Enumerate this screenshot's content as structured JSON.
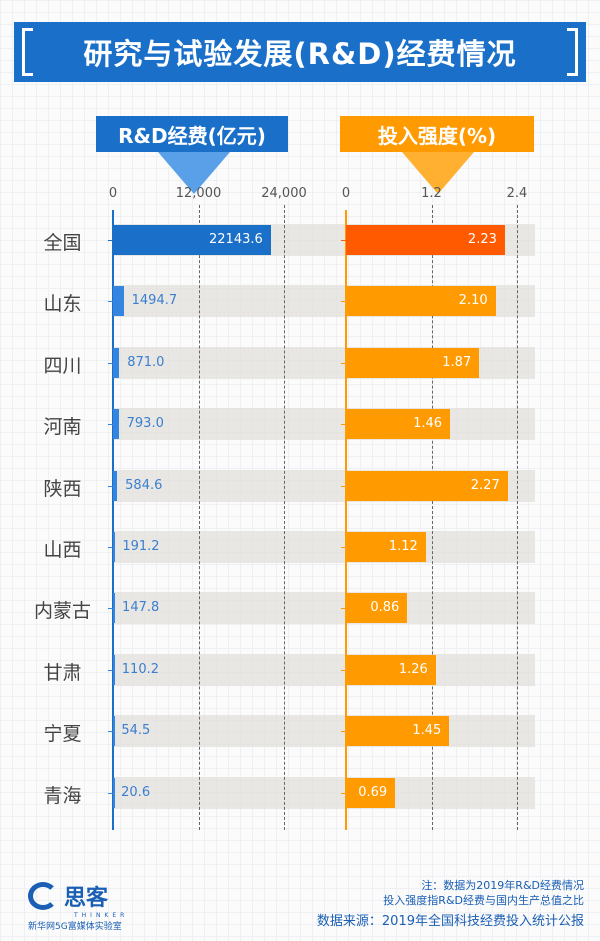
{
  "title": "研究与试验发展(R&D)经费情况",
  "colors": {
    "blue": "#1a6fc9",
    "blue_bar": "#3385e0",
    "orange": "#ff9a00",
    "orange_highlight": "#ff5a00"
  },
  "chart_data": [
    {
      "type": "bar",
      "orientation": "horizontal",
      "title": "R&D经费(亿元)",
      "ticks": [
        "0",
        "12,000",
        "24,000"
      ],
      "xlim": [
        0,
        24000
      ],
      "categories": [
        "全国",
        "山东",
        "四川",
        "河南",
        "陕西",
        "山西",
        "内蒙古",
        "甘肃",
        "宁夏",
        "青海"
      ],
      "values": [
        22143.6,
        1494.7,
        871.0,
        793.0,
        584.6,
        191.2,
        147.8,
        110.2,
        54.5,
        20.6
      ],
      "labels": [
        "22143.6",
        "1494.7",
        "871.0",
        "793.0",
        "584.6",
        "191.2",
        "147.8",
        "110.2",
        "54.5",
        "20.6"
      ]
    },
    {
      "type": "bar",
      "orientation": "horizontal",
      "title": "投入强度(%)",
      "ticks": [
        "0",
        "1.2",
        "2.4"
      ],
      "xlim": [
        0,
        2.4
      ],
      "categories": [
        "全国",
        "山东",
        "四川",
        "河南",
        "陕西",
        "山西",
        "内蒙古",
        "甘肃",
        "宁夏",
        "青海"
      ],
      "values": [
        2.23,
        2.1,
        1.87,
        1.46,
        2.27,
        1.12,
        0.86,
        1.26,
        1.45,
        0.69
      ],
      "labels": [
        "2.23",
        "2.10",
        "1.87",
        "1.46",
        "2.27",
        "1.12",
        "0.86",
        "1.26",
        "1.45",
        "0.69"
      ]
    }
  ],
  "logo": {
    "name": "思客",
    "sub": "THINKER",
    "org": "新华网5G富媒体实验室"
  },
  "notes": [
    "注：数据为2019年R&D经费情况",
    "投入强度指R&D经费与国内生产总值之比"
  ],
  "source": "数据来源：2019年全国科技经费投入统计公报"
}
